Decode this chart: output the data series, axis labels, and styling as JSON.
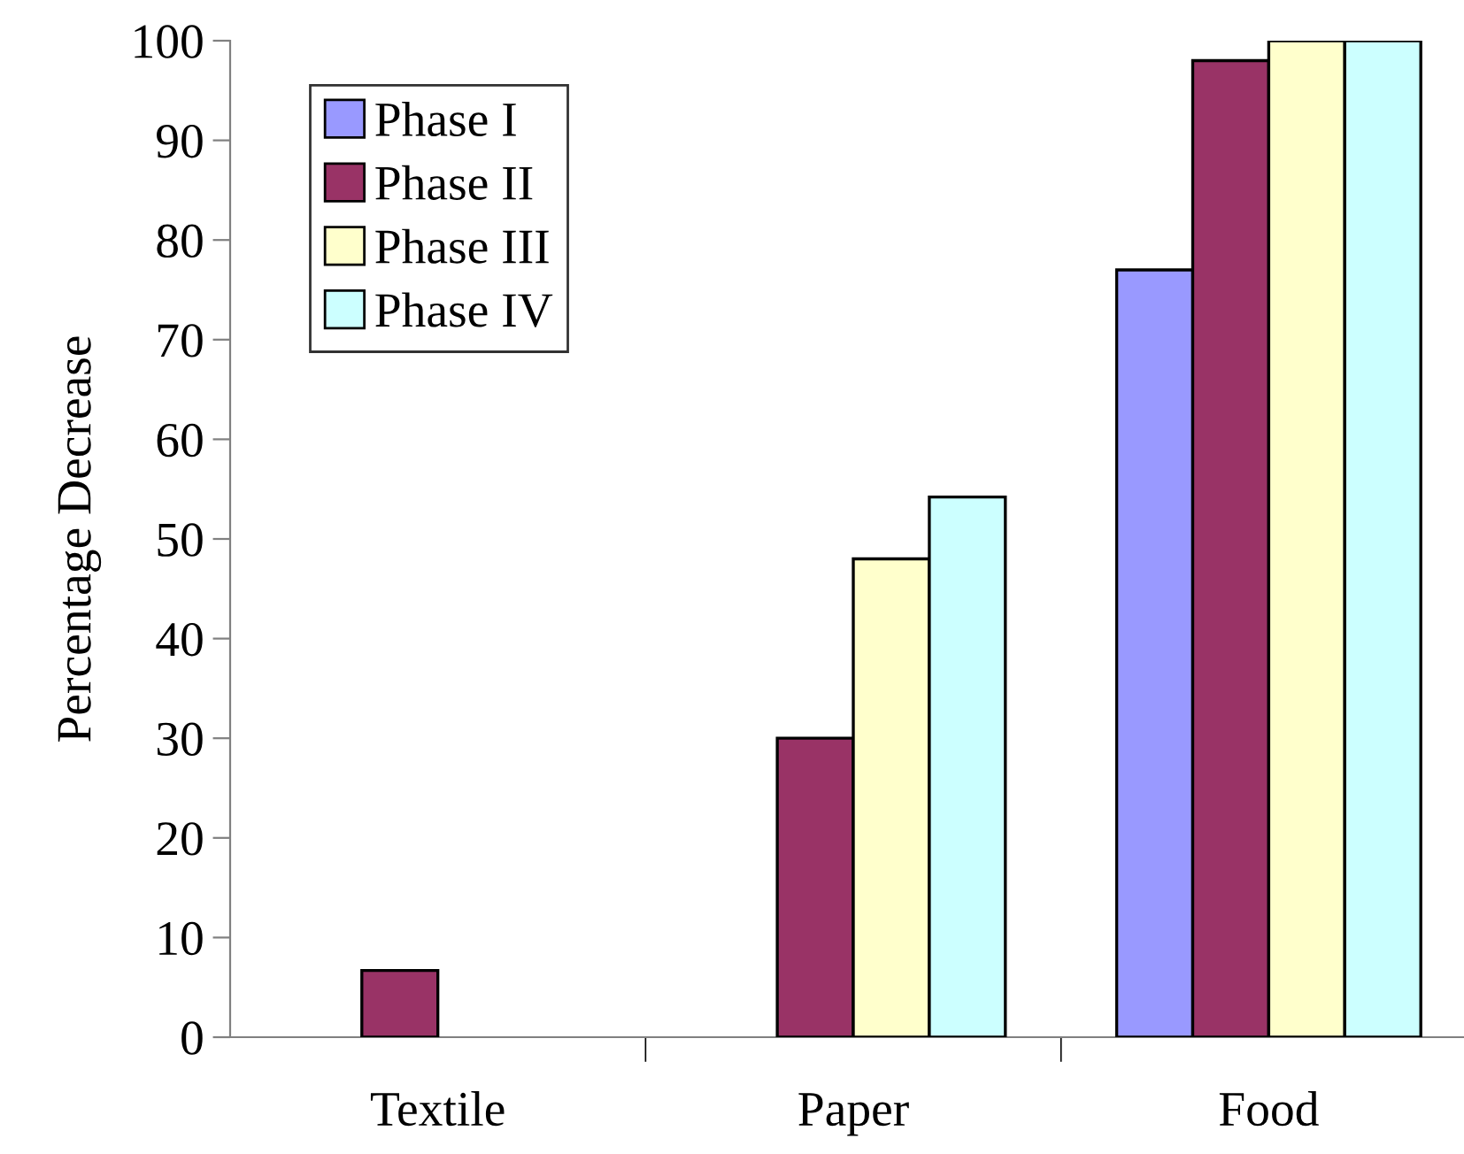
{
  "chart_data": {
    "type": "bar",
    "ylabel": "Percentage Decrease",
    "categories": [
      "Textile",
      "Paper",
      "Food"
    ],
    "series": [
      {
        "name": "Phase I",
        "color": "#9999ff",
        "values": [
          0,
          0,
          77
        ]
      },
      {
        "name": "Phase II",
        "color": "#993366",
        "values": [
          6.7,
          30,
          98
        ]
      },
      {
        "name": "Phase III",
        "color": "#ffffcc",
        "values": [
          0,
          48,
          100
        ]
      },
      {
        "name": "Phase IV",
        "color": "#ccffff",
        "values": [
          0,
          54.2,
          100
        ]
      }
    ],
    "ylim": [
      0,
      100
    ],
    "yticks": [
      0,
      10,
      20,
      30,
      40,
      50,
      60,
      70,
      80,
      90,
      100
    ],
    "grid": false,
    "legend": "top left"
  }
}
